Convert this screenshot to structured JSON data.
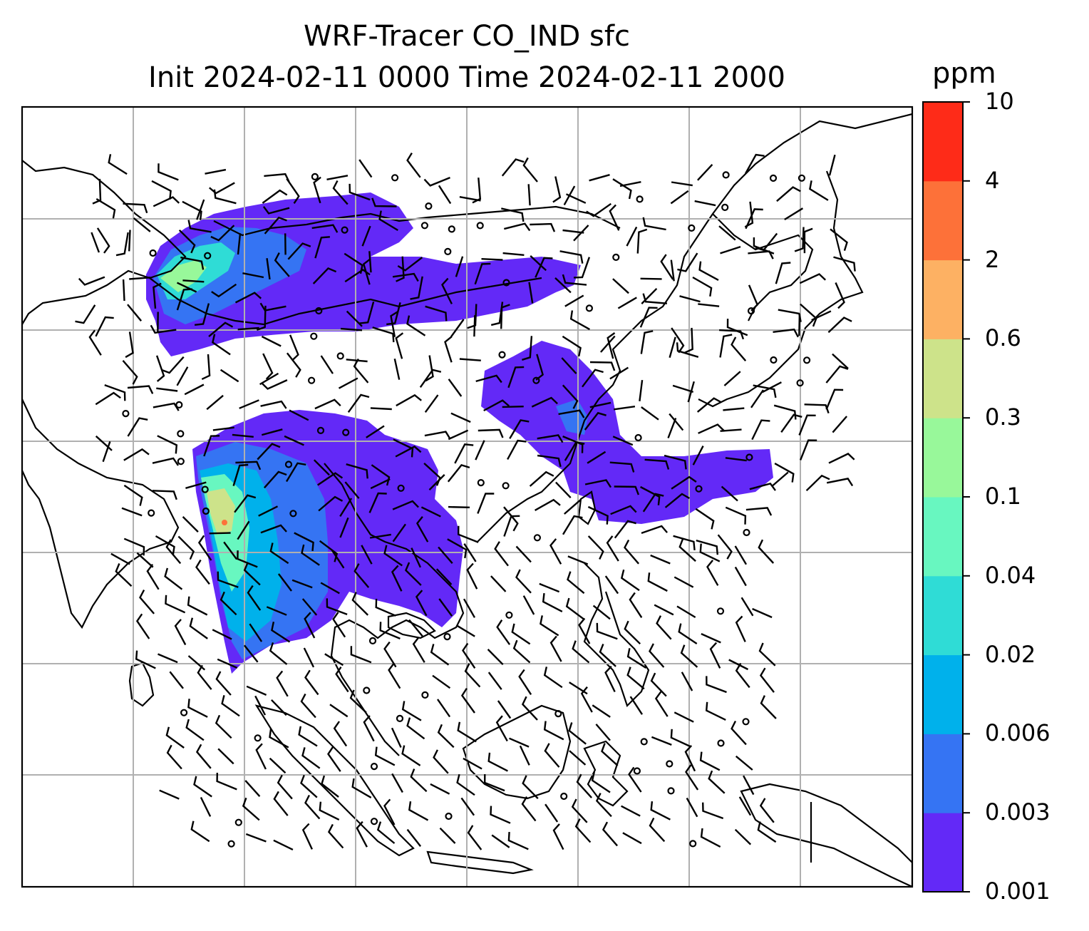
{
  "title": {
    "line1": "WRF-Tracer CO_IND sfc",
    "line2": "Init 2024-02-11 0000 Time 2024-02-11 2000"
  },
  "colorbar": {
    "unit": "ppm",
    "levels": [
      "0.001",
      "0.003",
      "0.006",
      "0.02",
      "0.04",
      "0.1",
      "0.3",
      "0.6",
      "2",
      "4",
      "10"
    ],
    "colors": [
      "#6329f7",
      "#3574f3",
      "#00b1eb",
      "#2fdcd6",
      "#68f7c0",
      "#98f89a",
      "#cde38a",
      "#fdb163",
      "#fd7139",
      "#fe2b18"
    ]
  },
  "map": {
    "type": "filled contour + wind barbs",
    "field": "CO_IND",
    "level": "sfc",
    "gridlines": true,
    "coastlines": true,
    "borders": true
  }
}
